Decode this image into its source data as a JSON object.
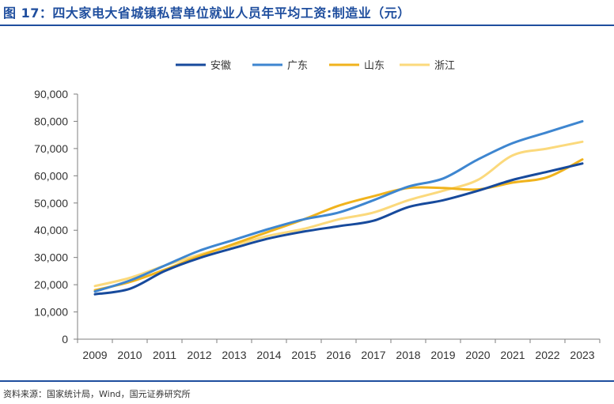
{
  "title": "图 17：四大家电大省城镇私营单位就业人员年平均工资:制造业（元）",
  "source": "资料来源：国家统计局，Wind，国元证券研究所",
  "chart_data": {
    "type": "line",
    "title": "图 17：四大家电大省城镇私营单位就业人员年平均工资:制造业（元）",
    "xlabel": "",
    "ylabel": "",
    "categories": [
      "2009",
      "2010",
      "2011",
      "2012",
      "2013",
      "2014",
      "2015",
      "2016",
      "2017",
      "2018",
      "2019",
      "2020",
      "2021",
      "2022",
      "2023"
    ],
    "ylim": [
      0,
      90000
    ],
    "yticks": [
      0,
      10000,
      20000,
      30000,
      40000,
      50000,
      60000,
      70000,
      80000,
      90000
    ],
    "ytick_labels": [
      "0",
      "10,000",
      "20,000",
      "30,000",
      "40,000",
      "50,000",
      "60,000",
      "70,000",
      "80,000",
      "90,000"
    ],
    "grid": false,
    "legend_position": "top",
    "series": [
      {
        "name": "安徽",
        "color": "#174a9c",
        "values": [
          16500,
          18500,
          25000,
          29800,
          33500,
          37000,
          39500,
          41500,
          43500,
          48500,
          51000,
          54500,
          58500,
          61500,
          64500
        ]
      },
      {
        "name": "广东",
        "color": "#3e86d0",
        "values": [
          17500,
          21500,
          27000,
          32500,
          36500,
          40500,
          44000,
          46500,
          51000,
          56000,
          59000,
          66000,
          72000,
          76000,
          80000
        ]
      },
      {
        "name": "山东",
        "color": "#f0b31d",
        "values": [
          18000,
          21000,
          25500,
          30500,
          35000,
          39500,
          44000,
          49000,
          52500,
          55500,
          55500,
          55000,
          57500,
          59500,
          66000
        ]
      },
      {
        "name": "浙江",
        "color": "#fbd97c",
        "values": [
          19500,
          22500,
          27000,
          31000,
          34500,
          38000,
          40500,
          44000,
          46500,
          51000,
          54500,
          58500,
          67500,
          70000,
          72500
        ]
      }
    ]
  }
}
